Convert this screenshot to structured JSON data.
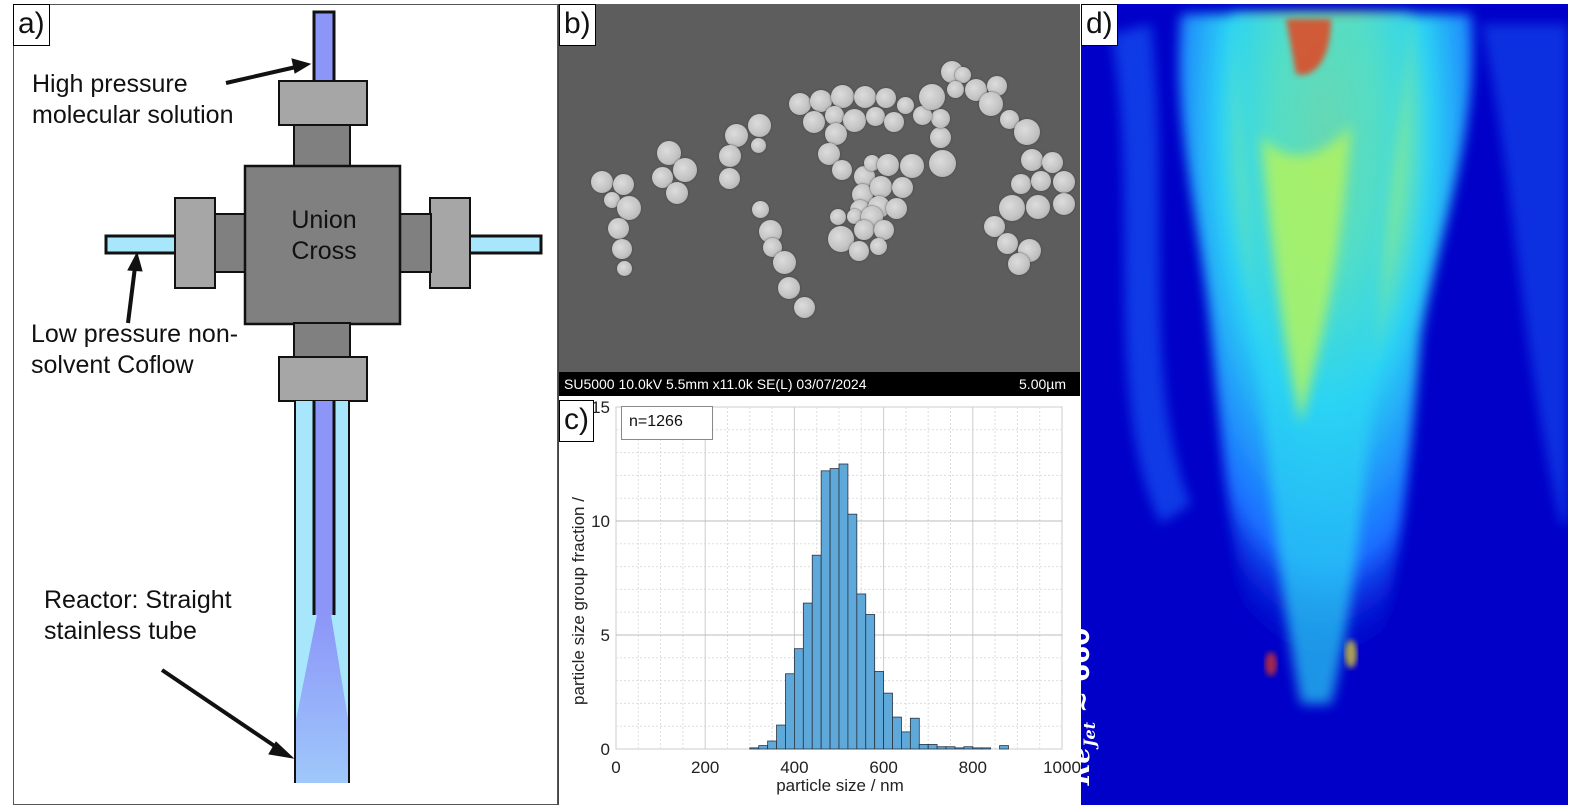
{
  "figure": {
    "panel_a": {
      "label": "a)",
      "annotations": {
        "high_pressure": [
          "High pressure",
          "molecular solution"
        ],
        "union_cross": [
          "Union",
          "Cross"
        ],
        "low_pressure": [
          "Low pressure non-",
          "solvent Coflow"
        ],
        "reactor": [
          "Reactor: Straight",
          "stainless tube"
        ]
      },
      "colors": {
        "inner_tube": "#8c96f8",
        "coflow": "#a8e6fb",
        "fitting_light": "#a6a6a6",
        "fitting_dark": "#808080",
        "mixing_plume": "#9fc4fb"
      }
    },
    "panel_b": {
      "label": "b)",
      "sem_info": "SU5000 10.0kV 5.5mm x11.0k SE(L) 03/07/2024",
      "scale_bar": "5.00µm"
    },
    "panel_c": {
      "label": "c)",
      "legend": "n=1266",
      "xlabel": "particle size / nm",
      "ylabel": "particle size group fraction /",
      "x_ticks": [
        "0",
        "200",
        "400",
        "600",
        "800",
        "1000"
      ],
      "y_ticks": [
        "0",
        "5",
        "10",
        "15"
      ],
      "bar_color": "#5ea8da"
    },
    "panel_d": {
      "label": "d)",
      "annotation": "Re",
      "annotation_sub": "Jet",
      "annotation_rest": " ≈ 660",
      "colormap": [
        "#0000c8",
        "#1a6cff",
        "#2cd4f4",
        "#b7f55a",
        "#f6e21a",
        "#ee3a14"
      ]
    }
  },
  "chart_data": {
    "type": "bar",
    "title": "",
    "xlabel": "particle size / nm",
    "ylabel": "particle size group fraction /",
    "legend": [
      "n=1266"
    ],
    "xlim": [
      0,
      1000
    ],
    "ylim": [
      0,
      15
    ],
    "grid": true,
    "bin_width": 20,
    "categories": [
      310,
      330,
      350,
      370,
      390,
      410,
      430,
      450,
      470,
      490,
      510,
      530,
      550,
      570,
      590,
      610,
      630,
      650,
      670,
      690,
      710,
      730,
      750,
      770,
      790,
      810,
      830,
      850,
      870
    ],
    "values": [
      0.05,
      0.15,
      0.35,
      1.05,
      3.3,
      4.4,
      6.4,
      8.5,
      12.2,
      12.3,
      12.5,
      10.3,
      6.8,
      5.9,
      3.4,
      2.45,
      1.4,
      0.75,
      1.35,
      0.2,
      0.2,
      0.1,
      0.1,
      0.05,
      0.1,
      0.05,
      0.05,
      0,
      0.15
    ]
  }
}
